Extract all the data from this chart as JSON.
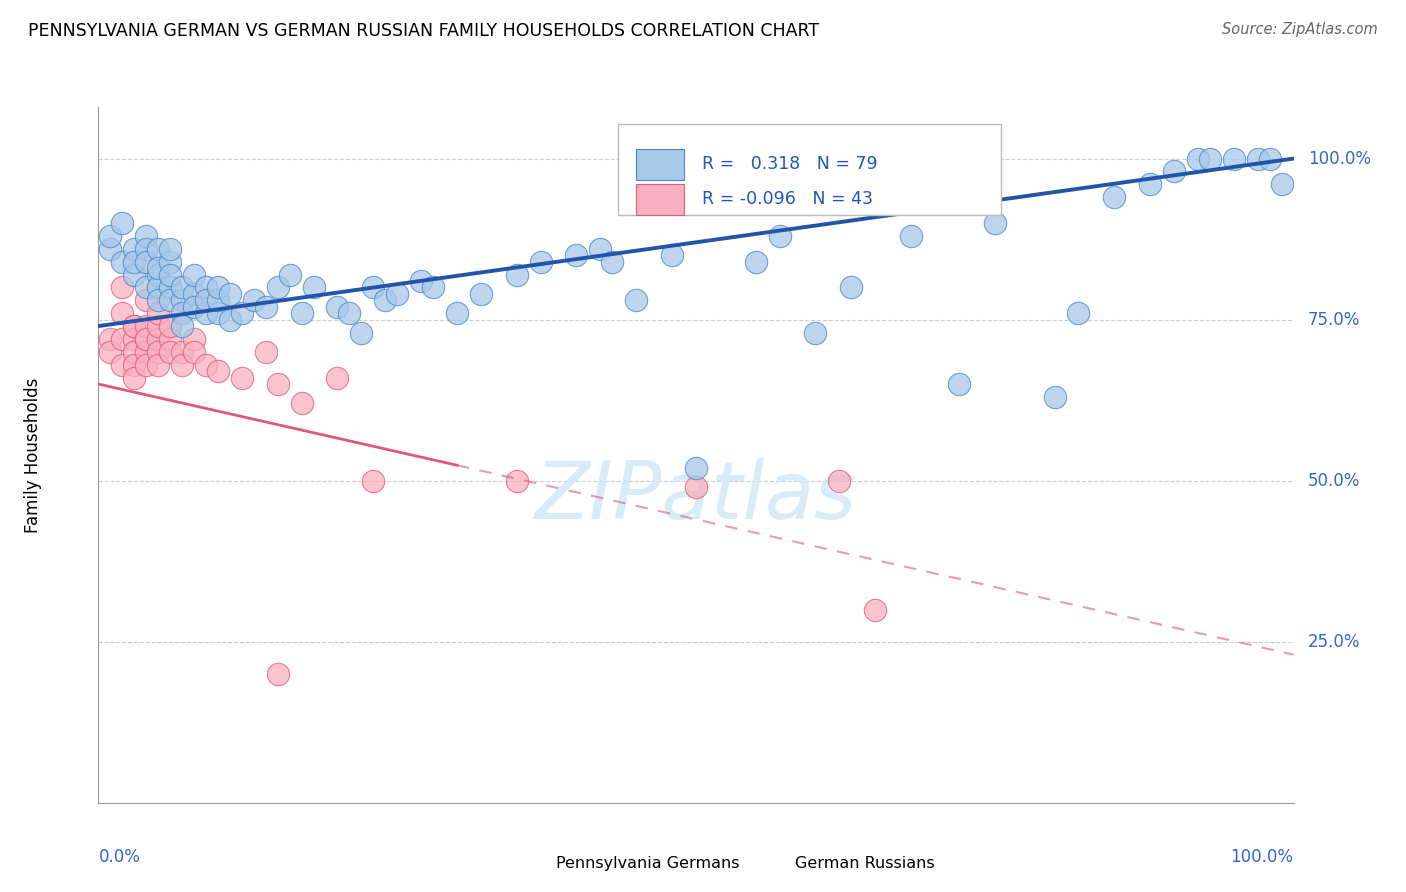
{
  "title": "PENNSYLVANIA GERMAN VS GERMAN RUSSIAN FAMILY HOUSEHOLDS CORRELATION CHART",
  "source": "Source: ZipAtlas.com",
  "ylabel": "Family Households",
  "legend_blue_label": "Pennsylvania Germans",
  "legend_pink_label": "German Russians",
  "R_blue": 0.318,
  "N_blue": 79,
  "R_pink": -0.096,
  "N_pink": 43,
  "blue_fill": "#A8C8E8",
  "blue_edge": "#4488CC",
  "pink_fill": "#F8B0C0",
  "pink_edge": "#E05878",
  "blue_line": "#2255AA",
  "pink_line": "#E05878",
  "watermark": "ZIPatlas",
  "blue_x": [
    0.01,
    0.01,
    0.02,
    0.02,
    0.03,
    0.03,
    0.03,
    0.04,
    0.04,
    0.04,
    0.04,
    0.05,
    0.05,
    0.05,
    0.05,
    0.05,
    0.06,
    0.06,
    0.06,
    0.06,
    0.06,
    0.07,
    0.07,
    0.07,
    0.07,
    0.08,
    0.08,
    0.08,
    0.09,
    0.09,
    0.09,
    0.1,
    0.1,
    0.1,
    0.11,
    0.11,
    0.12,
    0.13,
    0.14,
    0.15,
    0.16,
    0.17,
    0.18,
    0.2,
    0.21,
    0.22,
    0.23,
    0.24,
    0.25,
    0.27,
    0.28,
    0.3,
    0.32,
    0.35,
    0.37,
    0.4,
    0.42,
    0.43,
    0.45,
    0.48,
    0.5,
    0.55,
    0.57,
    0.6,
    0.63,
    0.68,
    0.72,
    0.75,
    0.8,
    0.82,
    0.85,
    0.88,
    0.9,
    0.92,
    0.93,
    0.95,
    0.97,
    0.98,
    0.99
  ],
  "blue_y": [
    0.86,
    0.88,
    0.9,
    0.84,
    0.82,
    0.86,
    0.84,
    0.88,
    0.86,
    0.84,
    0.8,
    0.82,
    0.86,
    0.8,
    0.78,
    0.83,
    0.8,
    0.84,
    0.78,
    0.82,
    0.86,
    0.78,
    0.8,
    0.76,
    0.74,
    0.79,
    0.77,
    0.82,
    0.76,
    0.8,
    0.78,
    0.76,
    0.78,
    0.8,
    0.75,
    0.79,
    0.76,
    0.78,
    0.77,
    0.8,
    0.82,
    0.76,
    0.8,
    0.77,
    0.76,
    0.73,
    0.8,
    0.78,
    0.79,
    0.81,
    0.8,
    0.76,
    0.79,
    0.82,
    0.84,
    0.85,
    0.86,
    0.84,
    0.78,
    0.85,
    0.52,
    0.84,
    0.88,
    0.73,
    0.8,
    0.88,
    0.65,
    0.9,
    0.63,
    0.76,
    0.94,
    0.96,
    0.98,
    1.0,
    1.0,
    1.0,
    1.0,
    1.0,
    0.96
  ],
  "pink_x": [
    0.01,
    0.01,
    0.02,
    0.02,
    0.02,
    0.02,
    0.03,
    0.03,
    0.03,
    0.03,
    0.03,
    0.03,
    0.04,
    0.04,
    0.04,
    0.04,
    0.04,
    0.04,
    0.05,
    0.05,
    0.05,
    0.05,
    0.05,
    0.06,
    0.06,
    0.06,
    0.07,
    0.07,
    0.08,
    0.08,
    0.09,
    0.1,
    0.12,
    0.14,
    0.15,
    0.17,
    0.2,
    0.23,
    0.35,
    0.5,
    0.62,
    0.65,
    0.15
  ],
  "pink_y": [
    0.72,
    0.7,
    0.8,
    0.76,
    0.72,
    0.68,
    0.74,
    0.72,
    0.7,
    0.68,
    0.66,
    0.74,
    0.72,
    0.7,
    0.68,
    0.74,
    0.72,
    0.78,
    0.72,
    0.7,
    0.68,
    0.74,
    0.76,
    0.72,
    0.74,
    0.7,
    0.7,
    0.68,
    0.72,
    0.7,
    0.68,
    0.67,
    0.66,
    0.7,
    0.65,
    0.62,
    0.66,
    0.5,
    0.5,
    0.49,
    0.5,
    0.3,
    0.2
  ]
}
